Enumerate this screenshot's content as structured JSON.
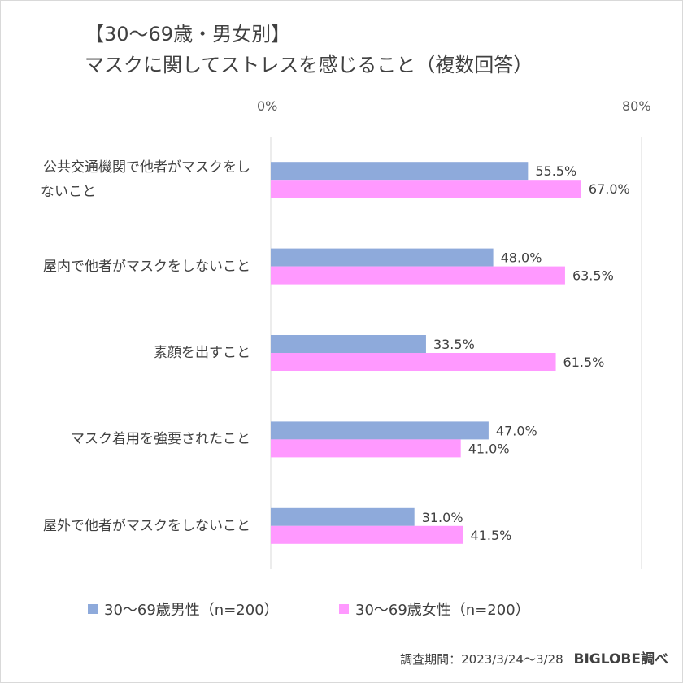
{
  "title_line1": "【30～69歳・男女別】",
  "title_line2": "マスクに関してストレスを感じること（複数回答）",
  "footer": {
    "period": "調査期間：2023/3/24～3/28",
    "brand": "BIGLOBE調べ"
  },
  "chart_data": {
    "type": "bar",
    "orientation": "horizontal",
    "categories": [
      [
        "公共交通機関で他者がマスクをし",
        "ないこと"
      ],
      [
        "屋内で他者がマスクをしないこと"
      ],
      [
        "素顔を出すこと"
      ],
      [
        "マスク着用を強要されたこと"
      ],
      [
        "屋外で他者がマスクをしないこと"
      ]
    ],
    "series": [
      {
        "name": "30～69歳男性（n=200）",
        "color": "#8eaadb",
        "values": [
          55.5,
          48.0,
          33.5,
          47.0,
          31.0
        ]
      },
      {
        "name": "30～69歳女性（n=200）",
        "color": "#ff99ff",
        "values": [
          67.0,
          63.5,
          61.5,
          41.0,
          41.5
        ]
      }
    ],
    "xlim": [
      0,
      80
    ],
    "x_tick_labels": [
      "0%",
      "80%"
    ],
    "value_format": "percent_1dp",
    "grid": true,
    "legend_position": "bottom"
  }
}
